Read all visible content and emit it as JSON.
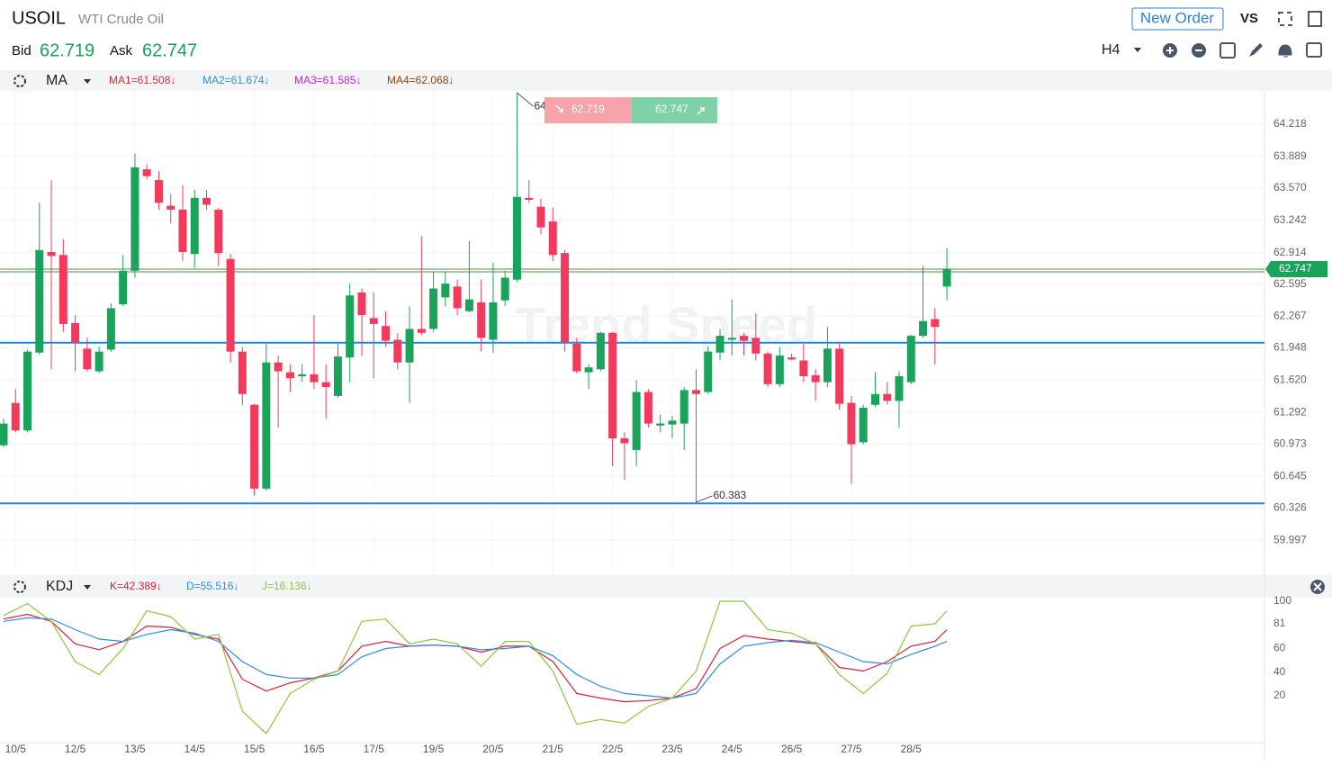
{
  "header": {
    "symbol": "USOIL",
    "name": "WTI Crude Oil",
    "bid_label": "Bid",
    "bid": 62.719,
    "ask_label": "Ask",
    "ask": 62.747,
    "new_order": "New Order",
    "vs": "VS",
    "timeframe": "H4"
  },
  "chart_data": [
    {
      "type": "candlestick",
      "watermark": "Trend Speed",
      "indicator": {
        "name": "MA",
        "items": [
          {
            "text": "MA1=61.508↓",
            "color": "#d32f2f"
          },
          {
            "text": "MA2=61.674↓",
            "color": "#2f8be6"
          },
          {
            "text": "MA3=61.585↓",
            "color": "#c026d3"
          },
          {
            "text": "MA4=62.068↓",
            "color": "#8b4513"
          }
        ]
      },
      "categories": [
        null,
        "10/5",
        null,
        null,
        null,
        null,
        "12/5",
        null,
        null,
        null,
        null,
        "13/5",
        null,
        null,
        null,
        null,
        "14/5",
        null,
        null,
        null,
        null,
        "15/5",
        null,
        null,
        null,
        null,
        "16/5",
        null,
        null,
        null,
        null,
        "17/5",
        null,
        null,
        null,
        null,
        "19/5",
        null,
        null,
        null,
        null,
        "20/5",
        null,
        null,
        null,
        null,
        "21/5",
        null,
        null,
        null,
        null,
        "22/5",
        null,
        null,
        null,
        null,
        "23/5",
        null,
        null,
        null,
        null,
        "24/5",
        null,
        null,
        null,
        null,
        "26/5",
        null,
        null,
        null,
        null,
        "27/5",
        null,
        null,
        null,
        null,
        "28/5",
        null,
        null,
        null
      ],
      "open": [
        60.96,
        61.39,
        61.11,
        61.9,
        62.92,
        62.89,
        62.2,
        61.94,
        61.71,
        61.93,
        62.39,
        62.73,
        63.76,
        63.65,
        63.39,
        63.35,
        62.9,
        63.47,
        63.35,
        62.85,
        61.91,
        61.37,
        60.52,
        61.8,
        61.7,
        61.66,
        61.68,
        61.6,
        61.46,
        61.85,
        62.51,
        62.25,
        62.17,
        62.03,
        61.8,
        62.14,
        62.14,
        62.46,
        62.57,
        62.32,
        62.41,
        62.03,
        62.43,
        62.64,
        63.47,
        63.38,
        63.23,
        62.91,
        61.99,
        61.7,
        61.73,
        62.1,
        61.03,
        60.91,
        61.5,
        61.16,
        61.17,
        61.18,
        61.52,
        61.5,
        61.9,
        62.03,
        62.07,
        62.05,
        61.89,
        61.58,
        61.85,
        61.82,
        61.67,
        61.6,
        61.94,
        61.39,
        60.99,
        61.37,
        61.48,
        61.41,
        61.6,
        62.07,
        62.24,
        62.57
      ],
      "high": [
        61.23,
        61.53,
        61.93,
        63.42,
        63.65,
        63.05,
        62.28,
        62.05,
        61.96,
        62.4,
        62.89,
        63.92,
        63.81,
        63.74,
        63.51,
        63.6,
        63.55,
        63.55,
        63.37,
        62.9,
        61.96,
        61.38,
        62.0,
        61.87,
        61.78,
        61.78,
        62.28,
        61.78,
        62.0,
        62.6,
        62.55,
        62.51,
        62.32,
        62.1,
        62.37,
        63.08,
        62.72,
        62.72,
        62.64,
        63.03,
        62.64,
        62.81,
        62.73,
        64.536,
        63.65,
        63.46,
        63.37,
        62.94,
        62.05,
        61.78,
        62.11,
        62.11,
        61.09,
        61.62,
        61.53,
        61.27,
        61.26,
        61.55,
        61.73,
        61.96,
        62.14,
        62.44,
        62.1,
        62.3,
        61.91,
        61.96,
        61.89,
        61.99,
        61.73,
        62.16,
        62.0,
        61.46,
        61.37,
        61.7,
        61.6,
        61.71,
        62.08,
        62.78,
        62.35,
        62.96
      ],
      "low": [
        60.94,
        61.09,
        61.09,
        61.88,
        61.73,
        62.11,
        61.71,
        61.71,
        61.69,
        61.91,
        62.37,
        62.66,
        63.66,
        63.35,
        63.21,
        62.83,
        62.76,
        63.35,
        62.78,
        61.8,
        61.37,
        60.45,
        60.5,
        61.14,
        61.5,
        61.6,
        61.53,
        61.23,
        61.44,
        61.6,
        61.87,
        61.64,
        61.96,
        61.73,
        61.39,
        62.08,
        62.11,
        62.37,
        62.28,
        62.31,
        61.91,
        61.9,
        62.37,
        62.62,
        63.42,
        63.1,
        62.83,
        61.91,
        61.69,
        61.53,
        61.71,
        60.75,
        60.61,
        60.75,
        61.14,
        61.09,
        61.03,
        60.91,
        60.383,
        61.48,
        61.82,
        61.87,
        61.87,
        61.82,
        61.55,
        61.55,
        61.82,
        61.6,
        61.41,
        61.55,
        61.32,
        60.57,
        60.97,
        61.35,
        61.37,
        61.14,
        61.58,
        62.05,
        61.78,
        62.43
      ],
      "close": [
        61.18,
        61.11,
        61.91,
        62.94,
        62.88,
        62.19,
        62.0,
        61.73,
        61.91,
        62.35,
        62.73,
        63.78,
        63.69,
        63.42,
        63.35,
        62.92,
        63.47,
        63.4,
        62.91,
        61.91,
        61.48,
        60.52,
        61.8,
        61.71,
        61.64,
        61.68,
        61.6,
        61.55,
        61.86,
        62.48,
        62.28,
        62.19,
        62.02,
        61.8,
        62.14,
        62.1,
        62.55,
        62.6,
        62.35,
        62.44,
        62.05,
        62.41,
        62.66,
        63.48,
        63.45,
        63.17,
        62.89,
        62.0,
        61.71,
        61.75,
        62.1,
        61.03,
        60.98,
        61.5,
        61.18,
        61.18,
        61.21,
        61.52,
        61.48,
        61.91,
        62.07,
        62.05,
        62.02,
        61.89,
        61.58,
        61.87,
        61.83,
        61.66,
        61.6,
        61.94,
        61.38,
        60.97,
        61.34,
        61.48,
        61.41,
        61.66,
        62.07,
        62.22,
        62.16,
        62.747
      ],
      "up_color": "#1aa35b",
      "down_color": "#f23a5c",
      "horizontal_lines": [
        62.0,
        60.37
      ],
      "horizontal_line_color": "#1e88e5",
      "price_line_color": "#4a8f3c",
      "xlim": [
        -0.3,
        105.6
      ],
      "ylim": [
        59.651,
        64.555
      ],
      "yticks": [
        64.218,
        63.889,
        {
          "value": 63.57,
          "label": "63.570"
        },
        63.242,
        62.914,
        62.595,
        62.267,
        61.948,
        {
          "value": 61.62,
          "label": "61.620"
        },
        61.292,
        60.973,
        60.645,
        60.326,
        59.997
      ],
      "grid": true
    },
    {
      "type": "line",
      "indicator": {
        "name": "KDJ"
      },
      "x": [
        0,
        2,
        4,
        6,
        8,
        10,
        12,
        14,
        16,
        18,
        20,
        22,
        24,
        26,
        28,
        30,
        32,
        34,
        36,
        38,
        40,
        42,
        44,
        46,
        48,
        50,
        52,
        54,
        56,
        58,
        60,
        62,
        64,
        66,
        68,
        70,
        72,
        74,
        76,
        78,
        79
      ],
      "series": [
        {
          "name": "K=42.389↓",
          "color": "#d6213a",
          "values": [
            85,
            89,
            83,
            64,
            59,
            66,
            79,
            78,
            72,
            68,
            34,
            24,
            31,
            35,
            41,
            62,
            66,
            62,
            63,
            62,
            57,
            62,
            62,
            49,
            22,
            18,
            15,
            16,
            18,
            26,
            60,
            71,
            68,
            66,
            64,
            44,
            41,
            49,
            62,
            66,
            76
          ]
        },
        {
          "name": "D=55.516↓",
          "color": "#2f8be6",
          "values": [
            83,
            86,
            85,
            76,
            68,
            66,
            72,
            76,
            73,
            66,
            49,
            38,
            35,
            35,
            38,
            53,
            60,
            62,
            63,
            62,
            59,
            60,
            62,
            54,
            38,
            28,
            22,
            20,
            18,
            22,
            47,
            62,
            65,
            67,
            65,
            57,
            49,
            47,
            55,
            62,
            66
          ]
        },
        {
          "name": "J=16.136↓",
          "color": "#8cc63f",
          "values": [
            88,
            98,
            83,
            49,
            38,
            60,
            92,
            87,
            68,
            72,
            7,
            -12,
            22,
            34,
            41,
            83,
            85,
            64,
            68,
            64,
            45,
            66,
            66,
            41,
            -4,
            0,
            -3,
            11,
            18,
            41,
            100,
            100,
            76,
            73,
            64,
            38,
            22,
            39,
            79,
            81,
            92
          ]
        }
      ],
      "xlim": [
        -0.3,
        105.6
      ],
      "ylim": [
        -19.6,
        102.3
      ],
      "yticks": [
        100,
        81,
        60,
        40,
        20
      ]
    }
  ]
}
